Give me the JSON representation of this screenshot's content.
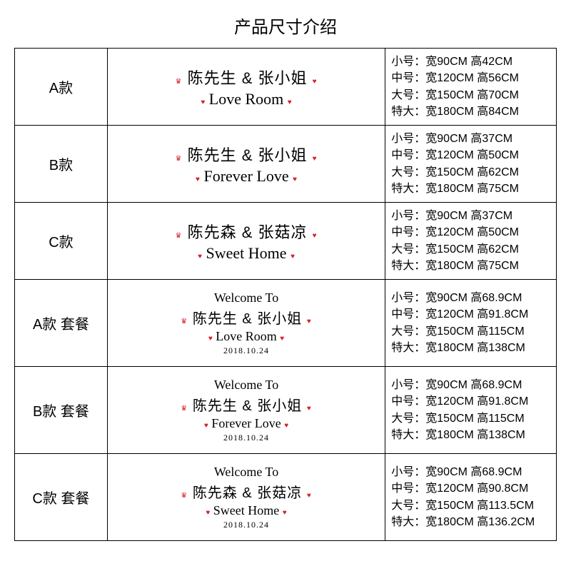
{
  "title": "产品尺寸介绍",
  "decorColors": {
    "accent": "#d4222a",
    "text": "#000000",
    "border": "#000000",
    "bg": "#ffffff"
  },
  "rows": [
    {
      "label": "A款",
      "names": "陈先生 & 张小姐",
      "script": "Love Room",
      "type": "basic",
      "sizes": [
        "小号：宽90CM 高42CM",
        "中号：宽120CM 高56CM",
        "大号：宽150CM 高70CM",
        "特大：宽180CM 高84CM"
      ]
    },
    {
      "label": "B款",
      "names": "陈先生 & 张小姐",
      "script": "Forever Love",
      "type": "basic",
      "sizes": [
        "小号：宽90CM 高37CM",
        "中号：宽120CM 高50CM",
        "大号：宽150CM 高62CM",
        "特大：宽180CM 高75CM"
      ]
    },
    {
      "label": "C款",
      "names": "陈先森 & 张菇凉",
      "script": "Sweet Home",
      "type": "basic",
      "sizes": [
        "小号：宽90CM 高37CM",
        "中号：宽120CM 高50CM",
        "大号：宽150CM 高62CM",
        "特大：宽180CM 高75CM"
      ]
    },
    {
      "label": "A款 套餐",
      "welcome": "Welcome To",
      "names": "陈先生 & 张小姐",
      "script": "Love Room",
      "date": "2018.10.24",
      "type": "combo",
      "sizes": [
        "小号：宽90CM 高68.9CM",
        "中号：宽120CM 高91.8CM",
        "大号：宽150CM 高115CM",
        "特大：宽180CM 高138CM"
      ]
    },
    {
      "label": "B款 套餐",
      "welcome": "Welcome To",
      "names": "陈先生 & 张小姐",
      "script": "Forever Love",
      "date": "2018.10.24",
      "type": "combo",
      "sizes": [
        "小号：宽90CM 高68.9CM",
        "中号：宽120CM 高91.8CM",
        "大号：宽150CM 高115CM",
        "特大：宽180CM 高138CM"
      ]
    },
    {
      "label": "C款 套餐",
      "welcome": "Welcome To",
      "names": "陈先森 & 张菇凉",
      "script": "Sweet Home",
      "date": "2018.10.24",
      "type": "combo",
      "sizes": [
        "小号：宽90CM 高68.9CM",
        "中号：宽120CM 高90.8CM",
        "大号：宽150CM 高113.5CM",
        "特大：宽180CM 高136.2CM"
      ]
    }
  ]
}
